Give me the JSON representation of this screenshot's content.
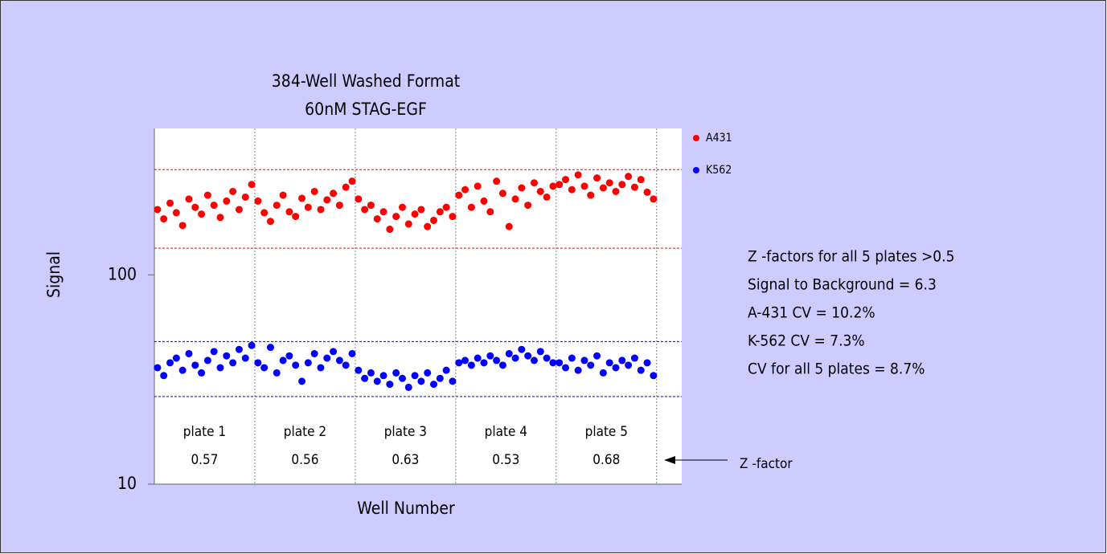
{
  "chart_data": {
    "type": "scatter",
    "title": "384-Well Washed Format",
    "subtitle": "60nM STAG-EGF",
    "x_label": "Well Number",
    "y_label": "Signal",
    "log_scale_y": true,
    "xlim": [
      0.5,
      84.5
    ],
    "ylim": [
      10,
      500
    ],
    "yticks": [
      10,
      100
    ],
    "x": [
      1,
      2,
      3,
      4,
      5,
      6,
      7,
      8,
      9,
      10,
      11,
      12,
      13,
      14,
      15,
      16,
      17,
      18,
      19,
      20,
      21,
      22,
      23,
      24,
      25,
      26,
      27,
      28,
      29,
      30,
      31,
      32,
      33,
      34,
      35,
      36,
      37,
      38,
      39,
      40,
      41,
      42,
      43,
      44,
      45,
      46,
      47,
      48,
      49,
      50,
      51,
      52,
      53,
      54,
      55,
      56,
      57,
      58,
      59,
      60,
      61,
      62,
      63,
      64,
      65,
      66,
      67,
      68,
      69,
      70,
      71,
      72,
      73,
      74,
      75,
      76,
      77,
      78,
      79,
      80
    ],
    "plate_boundaries": [
      16.5,
      32.5,
      48.5,
      64.5,
      80.5
    ],
    "plates": [
      {
        "name": "plate 1",
        "z_factor": 0.57
      },
      {
        "name": "plate 2",
        "z_factor": 0.56
      },
      {
        "name": "plate 3",
        "z_factor": 0.63
      },
      {
        "name": "plate 4",
        "z_factor": 0.53
      },
      {
        "name": "plate 5",
        "z_factor": 0.68
      }
    ],
    "series": [
      {
        "name": "A431",
        "color": "#ff0000",
        "limits": [
          134,
          318
        ],
        "values": [
          205,
          185,
          220,
          198,
          172,
          230,
          210,
          195,
          240,
          215,
          188,
          225,
          250,
          205,
          235,
          270,
          225,
          198,
          180,
          215,
          240,
          200,
          190,
          232,
          210,
          250,
          205,
          228,
          245,
          215,
          262,
          280,
          230,
          205,
          215,
          185,
          200,
          165,
          190,
          210,
          175,
          195,
          205,
          170,
          182,
          200,
          210,
          190,
          240,
          255,
          210,
          265,
          225,
          200,
          280,
          245,
          170,
          230,
          260,
          215,
          275,
          250,
          235,
          265,
          270,
          285,
          255,
          300,
          265,
          240,
          290,
          260,
          275,
          250,
          270,
          295,
          262,
          285,
          248,
          230
        ]
      },
      {
        "name": "K562",
        "color": "#0000ff",
        "limits": [
          26.2,
          48
        ],
        "values": [
          36,
          33,
          38,
          40,
          35,
          42,
          37,
          34,
          39,
          43,
          36,
          41,
          38,
          44,
          40,
          46,
          38,
          36,
          45,
          34,
          39,
          41,
          37,
          31,
          38,
          42,
          36,
          40,
          43,
          39,
          37,
          42,
          35,
          32,
          34,
          31,
          33,
          30,
          34,
          32,
          29,
          33,
          31,
          34,
          30,
          32,
          35,
          31,
          38,
          39,
          37,
          40,
          38,
          41,
          39,
          37,
          42,
          40,
          44,
          41,
          39,
          43,
          40,
          38,
          38,
          36,
          40,
          35,
          39,
          37,
          41,
          34,
          38,
          36,
          39,
          37,
          40,
          35,
          38,
          33
        ]
      }
    ],
    "annotations": [
      "Z -factors for all 5 plates >0.5",
      "Signal to Background = 6.3",
      "A-431 CV = 10.2%",
      "K-562 CV = 7.3%",
      "CV for all 5 plates = 8.7%"
    ],
    "arrow_label": "Z -factor"
  }
}
